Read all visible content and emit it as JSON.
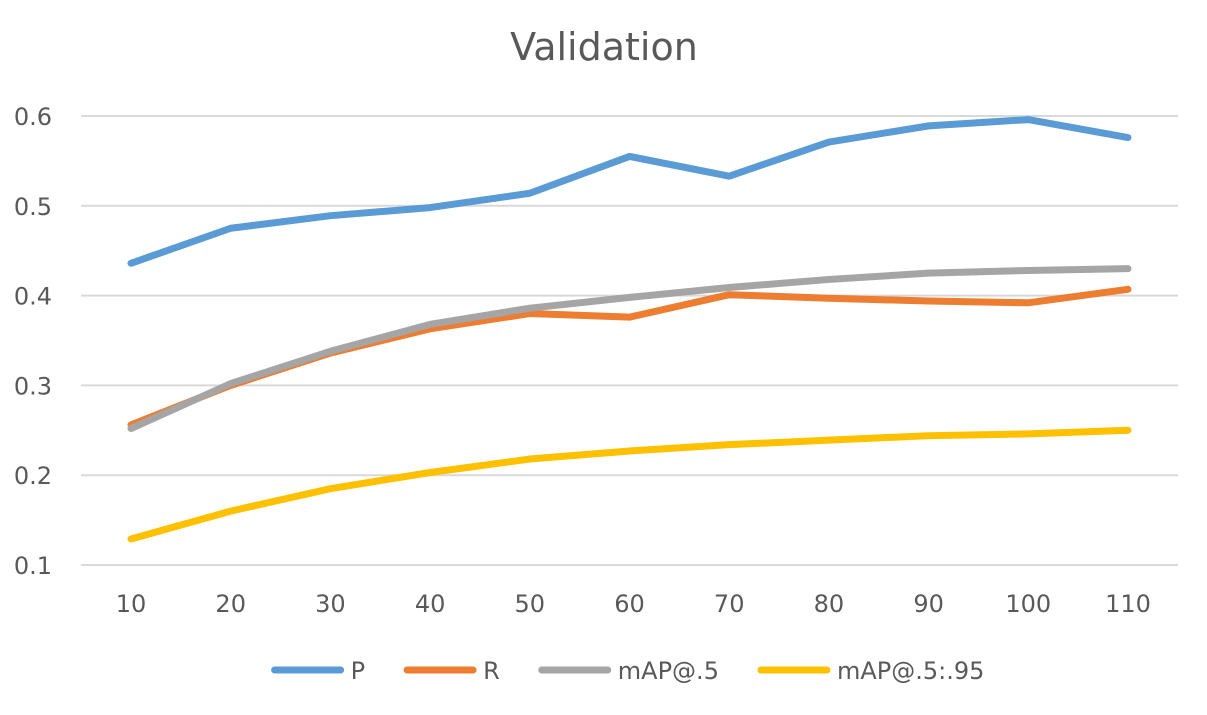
{
  "chart_data": {
    "type": "line",
    "title": "Validation",
    "xlabel": "",
    "ylabel": "",
    "x": [
      10,
      20,
      30,
      40,
      50,
      60,
      70,
      80,
      90,
      100,
      110
    ],
    "ylim": [
      0.1,
      0.6
    ],
    "yticks": [
      0.1,
      0.2,
      0.3,
      0.4,
      0.5,
      0.6
    ],
    "ytick_labels": [
      "0.1",
      "0.2",
      "0.3",
      "0.4",
      "0.5",
      "0.6"
    ],
    "grid": true,
    "legend_position": "bottom",
    "series": [
      {
        "name": "P",
        "color": "#5b9bd5",
        "values": [
          0.436,
          0.475,
          0.489,
          0.498,
          0.514,
          0.555,
          0.533,
          0.571,
          0.589,
          0.596,
          0.576
        ]
      },
      {
        "name": "R",
        "color": "#ed7d31",
        "values": [
          0.256,
          0.3,
          0.336,
          0.363,
          0.38,
          0.376,
          0.401,
          0.397,
          0.394,
          0.392,
          0.407
        ]
      },
      {
        "name": "mAP@.5",
        "color": "#a5a5a5",
        "values": [
          0.252,
          0.302,
          0.338,
          0.368,
          0.386,
          0.398,
          0.409,
          0.418,
          0.425,
          0.428,
          0.43
        ]
      },
      {
        "name": "mAP@.5:.95",
        "color": "#ffc000",
        "values": [
          0.129,
          0.16,
          0.185,
          0.203,
          0.218,
          0.227,
          0.234,
          0.239,
          0.244,
          0.246,
          0.25
        ]
      }
    ]
  }
}
